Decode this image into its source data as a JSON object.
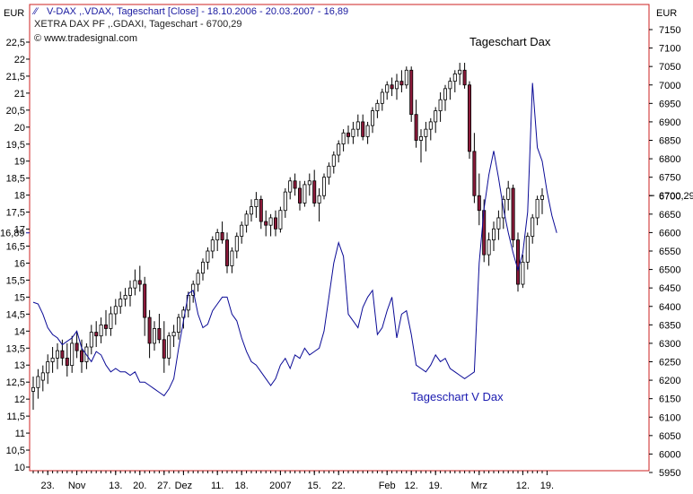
{
  "header": {
    "line1": "V-DAX ,.VDAX, Tageschart [Close] - 18.10.2006 - 20.03.2007 - 16,89",
    "line2": "XETRA DAX PF      ,.GDAXI, Tageschart - 6700,29",
    "copyright": "© www.tradesignal.com"
  },
  "chart_data": {
    "type": "line",
    "left_axis": {
      "unit": "EUR",
      "ticks": [
        "22,5",
        "22",
        "21,5",
        "21",
        "20,5",
        "20",
        "19,5",
        "19",
        "18,5",
        "18",
        "17,5",
        "17",
        "16,5",
        "16",
        "15,5",
        "15",
        "14,5",
        "14",
        "13,5",
        "13",
        "12,5",
        "12",
        "11,5",
        "11",
        "10,5",
        "10"
      ],
      "min": 10,
      "max": 22.5,
      "last_value_label": "16,89"
    },
    "right_axis": {
      "unit": "EUR",
      "ticks": [
        "7150",
        "7100",
        "7050",
        "7000",
        "6950",
        "6900",
        "6850",
        "6800",
        "6750",
        "6700",
        "6650",
        "6600",
        "6550",
        "6500",
        "6450",
        "6400",
        "6350",
        "6300",
        "6250",
        "6200",
        "6150",
        "6100",
        "6050",
        "6000",
        "5950"
      ],
      "min": 5950,
      "max": 7150,
      "last_value_label": "6700,29"
    },
    "x_axis": {
      "labels": [
        "23.",
        "Nov",
        "13.",
        "20.",
        "27.",
        "Dez",
        "11.",
        "18.",
        "2007",
        "15.",
        "22.",
        "Feb",
        "12.",
        "19.",
        "Mrz",
        "12.",
        "19."
      ],
      "label_day_index": [
        3,
        9,
        17,
        22,
        27,
        31,
        38,
        43,
        51,
        58,
        63,
        73,
        78,
        83,
        92,
        101,
        106
      ]
    },
    "annotations": [
      "Tageschart Dax",
      "Tageschart  V Dax"
    ],
    "series": [
      {
        "axis": "left",
        "style": "line",
        "color": "#0a0a96",
        "values": [
          14.85,
          14.8,
          14.5,
          14.1,
          13.9,
          13.8,
          13.6,
          13.7,
          13.8,
          14.0,
          13.5,
          13.3,
          13.1,
          13.4,
          13.3,
          13.0,
          12.8,
          12.9,
          12.8,
          12.8,
          12.7,
          12.8,
          12.5,
          12.5,
          12.4,
          12.3,
          12.2,
          12.1,
          12.3,
          12.6,
          13.5,
          14.3,
          15.1,
          15.2,
          14.5,
          14.1,
          14.2,
          14.6,
          14.8,
          15.0,
          15.0,
          14.5,
          14.3,
          13.8,
          13.4,
          13.1,
          13.0,
          12.8,
          12.6,
          12.4,
          12.6,
          13.0,
          13.2,
          12.9,
          13.3,
          13.2,
          13.5,
          13.3,
          13.4,
          13.5,
          14.0,
          15.0,
          16.0,
          16.6,
          16.2,
          14.5,
          14.3,
          14.1,
          14.7,
          15.0,
          15.2,
          13.9,
          14.1,
          14.6,
          15.0,
          13.8,
          14.5,
          14.6,
          13.9,
          13.0,
          12.9,
          12.8,
          13.0,
          13.3,
          13.1,
          13.2,
          12.9,
          12.8,
          12.7,
          12.6,
          12.7,
          12.8,
          16.0,
          17.6,
          18.6,
          19.3,
          18.5,
          17.6,
          16.9,
          16.3,
          15.8,
          16.3,
          17.5,
          21.3,
          19.4,
          19.0,
          18.1,
          17.4,
          16.89
        ]
      },
      {
        "axis": "right",
        "style": "candlestick",
        "color": "#000000",
        "down_color": "#8b1a3a",
        "ohlc": [
          [
            6170,
            6210,
            6120,
            6180
          ],
          [
            6180,
            6230,
            6150,
            6210
          ],
          [
            6200,
            6240,
            6170,
            6220
          ],
          [
            6220,
            6270,
            6190,
            6250
          ],
          [
            6250,
            6290,
            6220,
            6260
          ],
          [
            6260,
            6300,
            6230,
            6280
          ],
          [
            6280,
            6310,
            6240,
            6260
          ],
          [
            6260,
            6300,
            6210,
            6240
          ],
          [
            6240,
            6320,
            6220,
            6300
          ],
          [
            6300,
            6330,
            6260,
            6280
          ],
          [
            6280,
            6310,
            6220,
            6250
          ],
          [
            6250,
            6300,
            6230,
            6290
          ],
          [
            6290,
            6350,
            6270,
            6330
          ],
          [
            6330,
            6360,
            6290,
            6320
          ],
          [
            6320,
            6370,
            6300,
            6350
          ],
          [
            6350,
            6390,
            6320,
            6340
          ],
          [
            6340,
            6400,
            6320,
            6380
          ],
          [
            6380,
            6420,
            6350,
            6400
          ],
          [
            6400,
            6440,
            6380,
            6420
          ],
          [
            6420,
            6450,
            6400,
            6430
          ],
          [
            6430,
            6470,
            6400,
            6450
          ],
          [
            6450,
            6500,
            6430,
            6470
          ],
          [
            6470,
            6510,
            6440,
            6460
          ],
          [
            6460,
            6480,
            6320,
            6370
          ],
          [
            6370,
            6390,
            6260,
            6300
          ],
          [
            6300,
            6360,
            6280,
            6340
          ],
          [
            6340,
            6380,
            6300,
            6310
          ],
          [
            6310,
            6360,
            6220,
            6260
          ],
          [
            6260,
            6330,
            6240,
            6320
          ],
          [
            6320,
            6350,
            6290,
            6330
          ],
          [
            6330,
            6380,
            6310,
            6370
          ],
          [
            6370,
            6400,
            6340,
            6390
          ],
          [
            6390,
            6440,
            6370,
            6430
          ],
          [
            6430,
            6470,
            6410,
            6460
          ],
          [
            6460,
            6500,
            6440,
            6490
          ],
          [
            6490,
            6530,
            6470,
            6520
          ],
          [
            6520,
            6560,
            6500,
            6550
          ],
          [
            6550,
            6590,
            6530,
            6580
          ],
          [
            6580,
            6610,
            6550,
            6600
          ],
          [
            6600,
            6630,
            6570,
            6580
          ],
          [
            6580,
            6600,
            6490,
            6510
          ],
          [
            6510,
            6560,
            6490,
            6550
          ],
          [
            6550,
            6600,
            6530,
            6590
          ],
          [
            6590,
            6630,
            6570,
            6620
          ],
          [
            6620,
            6660,
            6600,
            6650
          ],
          [
            6650,
            6690,
            6630,
            6670
          ],
          [
            6670,
            6710,
            6640,
            6690
          ],
          [
            6690,
            6700,
            6610,
            6630
          ],
          [
            6630,
            6660,
            6590,
            6620
          ],
          [
            6620,
            6650,
            6590,
            6640
          ],
          [
            6640,
            6660,
            6590,
            6610
          ],
          [
            6610,
            6670,
            6600,
            6660
          ],
          [
            6660,
            6720,
            6640,
            6710
          ],
          [
            6710,
            6750,
            6690,
            6740
          ],
          [
            6740,
            6760,
            6700,
            6720
          ],
          [
            6720,
            6740,
            6660,
            6680
          ],
          [
            6680,
            6740,
            6670,
            6730
          ],
          [
            6730,
            6760,
            6700,
            6740
          ],
          [
            6740,
            6770,
            6670,
            6680
          ],
          [
            6680,
            6720,
            6630,
            6700
          ],
          [
            6700,
            6760,
            6690,
            6750
          ],
          [
            6750,
            6790,
            6730,
            6780
          ],
          [
            6780,
            6820,
            6760,
            6810
          ],
          [
            6810,
            6850,
            6790,
            6840
          ],
          [
            6840,
            6880,
            6820,
            6870
          ],
          [
            6870,
            6890,
            6840,
            6860
          ],
          [
            6860,
            6900,
            6840,
            6880
          ],
          [
            6880,
            6920,
            6860,
            6900
          ],
          [
            6900,
            6920,
            6850,
            6860
          ],
          [
            6860,
            6900,
            6840,
            6890
          ],
          [
            6890,
            6940,
            6870,
            6930
          ],
          [
            6930,
            6960,
            6910,
            6950
          ],
          [
            6950,
            6990,
            6930,
            6980
          ],
          [
            6980,
            7010,
            6960,
            7000
          ],
          [
            7000,
            7020,
            6970,
            6990
          ],
          [
            6990,
            7030,
            6960,
            7010
          ],
          [
            7010,
            7040,
            6980,
            7000
          ],
          [
            7000,
            7050,
            6990,
            7040
          ],
          [
            7040,
            7050,
            6900,
            6920
          ],
          [
            6920,
            6960,
            6830,
            6850
          ],
          [
            6850,
            6880,
            6790,
            6860
          ],
          [
            6860,
            6900,
            6820,
            6880
          ],
          [
            6880,
            6910,
            6850,
            6900
          ],
          [
            6900,
            6940,
            6870,
            6930
          ],
          [
            6930,
            6980,
            6900,
            6960
          ],
          [
            6960,
            7000,
            6930,
            6990
          ],
          [
            6990,
            7020,
            6960,
            7010
          ],
          [
            7010,
            7040,
            6980,
            7030
          ],
          [
            7030,
            7060,
            7000,
            7040
          ],
          [
            7040,
            7060,
            6990,
            7000
          ],
          [
            7000,
            7010,
            6800,
            6820
          ],
          [
            6820,
            6870,
            6680,
            6700
          ],
          [
            6700,
            6760,
            6620,
            6660
          ],
          [
            6660,
            6690,
            6520,
            6540
          ],
          [
            6540,
            6600,
            6510,
            6580
          ],
          [
            6580,
            6630,
            6550,
            6610
          ],
          [
            6610,
            6660,
            6580,
            6640
          ],
          [
            6640,
            6700,
            6610,
            6690
          ],
          [
            6690,
            6740,
            6660,
            6720
          ],
          [
            6720,
            6730,
            6560,
            6580
          ],
          [
            6580,
            6600,
            6440,
            6460
          ],
          [
            6460,
            6540,
            6450,
            6520
          ],
          [
            6520,
            6600,
            6500,
            6590
          ],
          [
            6590,
            6650,
            6570,
            6640
          ],
          [
            6640,
            6700,
            6620,
            6690
          ],
          [
            6690,
            6720,
            6650,
            6700
          ]
        ]
      }
    ]
  }
}
